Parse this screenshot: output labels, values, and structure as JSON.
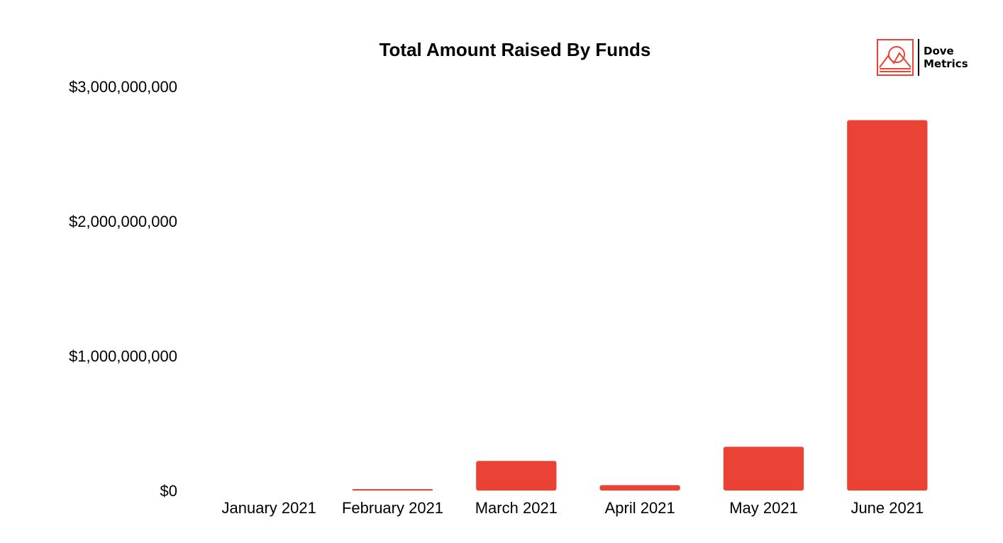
{
  "colors": {
    "bar": "#EA4335",
    "text": "#000000",
    "background": "#ffffff",
    "logo": "#EA4335"
  },
  "logo": {
    "icon": "mountain-sun-icon",
    "line1": "Dove",
    "line2": "Metrics"
  },
  "chart_data": {
    "type": "bar",
    "title": "Total Amount Raised By Funds",
    "xlabel": "",
    "ylabel": "",
    "categories": [
      "January 2021",
      "February 2021",
      "March 2021",
      "April 2021",
      "May 2021",
      "June 2021"
    ],
    "values": [
      0,
      10000000,
      220000000,
      40000000,
      325000000,
      2750000000
    ],
    "ylim": [
      0,
      3000000000
    ],
    "yticks": [
      0,
      1000000000,
      2000000000,
      3000000000
    ],
    "ytick_labels": [
      "$0",
      "$1,000,000,000",
      "$2,000,000,000",
      "$3,000,000,000"
    ],
    "grid": false,
    "legend": "none"
  }
}
